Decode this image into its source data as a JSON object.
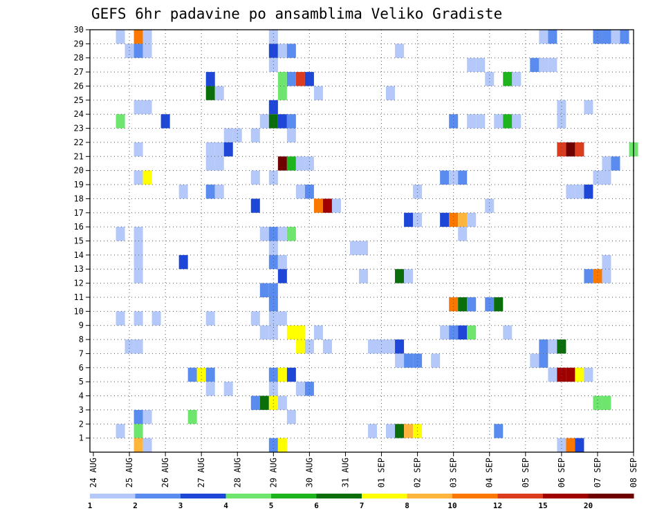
{
  "chart_data": {
    "type": "heatmap",
    "title": "GEFS 6hr padavine po ansamblima Veliko Gradiste",
    "xlabel": "",
    "ylabel": "",
    "x_ticks": [
      "24 AUG",
      "25 AUG",
      "26 AUG",
      "27 AUG",
      "28 AUG",
      "29 AUG",
      "30 AUG",
      "31 AUG",
      "01 SEP",
      "02 SEP",
      "03 SEP",
      "04 SEP",
      "05 SEP",
      "06 SEP",
      "07 SEP",
      "08 SEP"
    ],
    "x_range_steps": [
      0,
      60
    ],
    "y_ticks": [
      1,
      2,
      3,
      4,
      5,
      6,
      7,
      8,
      9,
      10,
      11,
      12,
      13,
      14,
      15,
      16,
      17,
      18,
      19,
      20,
      21,
      22,
      23,
      24,
      25,
      26,
      27,
      28,
      29,
      30
    ],
    "y_range": [
      0,
      30
    ],
    "grid": true,
    "colorbar": {
      "labels": [
        "1",
        "2",
        "3",
        "4",
        "5",
        "6",
        "7",
        "8",
        "10",
        "12",
        "15",
        "20"
      ],
      "colors": [
        "#b4c8fa",
        "#5a8cf0",
        "#1e46d7",
        "#6ee66e",
        "#1eb41e",
        "#0a6e0a",
        "#ffff00",
        "#ffb43c",
        "#fa7800",
        "#dc3c1e",
        "#a00000",
        "#6e0000"
      ]
    },
    "cells_note": "Each cell: [member(1-30), 6h step index from 24 AUG 00Z, colour class 0-11 (0 = 1-2 mm ... 11 = >20 mm)]",
    "cells": [
      [
        30,
        3,
        0
      ],
      [
        30,
        5,
        8
      ],
      [
        30,
        6,
        0
      ],
      [
        30,
        20,
        0
      ],
      [
        30,
        50,
        0
      ],
      [
        30,
        51,
        1
      ],
      [
        30,
        56,
        1
      ],
      [
        30,
        57,
        1
      ],
      [
        30,
        58,
        0
      ],
      [
        30,
        59,
        1
      ],
      [
        29,
        4,
        0
      ],
      [
        29,
        5,
        1
      ],
      [
        29,
        6,
        0
      ],
      [
        29,
        20,
        2
      ],
      [
        29,
        21,
        0
      ],
      [
        29,
        22,
        1
      ],
      [
        29,
        34,
        0
      ],
      [
        28,
        20,
        0
      ],
      [
        28,
        42,
        0
      ],
      [
        28,
        43,
        0
      ],
      [
        28,
        49,
        1
      ],
      [
        28,
        50,
        0
      ],
      [
        28,
        51,
        0
      ],
      [
        27,
        13,
        2
      ],
      [
        27,
        21,
        3
      ],
      [
        27,
        22,
        1
      ],
      [
        27,
        23,
        9
      ],
      [
        27,
        24,
        2
      ],
      [
        27,
        44,
        0
      ],
      [
        27,
        46,
        4
      ],
      [
        27,
        47,
        0
      ],
      [
        26,
        13,
        5
      ],
      [
        26,
        14,
        0
      ],
      [
        26,
        21,
        3
      ],
      [
        26,
        25,
        0
      ],
      [
        26,
        33,
        0
      ],
      [
        25,
        5,
        0
      ],
      [
        25,
        6,
        0
      ],
      [
        25,
        20,
        2
      ],
      [
        25,
        52,
        0
      ],
      [
        25,
        55,
        0
      ],
      [
        24,
        3,
        3
      ],
      [
        24,
        8,
        2
      ],
      [
        24,
        19,
        0
      ],
      [
        24,
        20,
        5
      ],
      [
        24,
        21,
        2
      ],
      [
        24,
        22,
        1
      ],
      [
        24,
        40,
        1
      ],
      [
        24,
        42,
        0
      ],
      [
        24,
        43,
        0
      ],
      [
        24,
        45,
        0
      ],
      [
        24,
        46,
        4
      ],
      [
        24,
        47,
        0
      ],
      [
        24,
        52,
        0
      ],
      [
        23,
        15,
        0
      ],
      [
        23,
        16,
        0
      ],
      [
        23,
        18,
        0
      ],
      [
        23,
        22,
        0
      ],
      [
        22,
        5,
        0
      ],
      [
        22,
        13,
        0
      ],
      [
        22,
        14,
        0
      ],
      [
        22,
        15,
        2
      ],
      [
        22,
        52,
        9
      ],
      [
        22,
        53,
        11
      ],
      [
        22,
        54,
        9
      ],
      [
        22,
        60,
        3
      ],
      [
        21,
        13,
        0
      ],
      [
        21,
        14,
        0
      ],
      [
        21,
        21,
        11
      ],
      [
        21,
        22,
        4
      ],
      [
        21,
        23,
        0
      ],
      [
        21,
        24,
        0
      ],
      [
        21,
        57,
        0
      ],
      [
        21,
        58,
        1
      ],
      [
        20,
        5,
        0
      ],
      [
        20,
        6,
        6
      ],
      [
        20,
        18,
        0
      ],
      [
        20,
        20,
        0
      ],
      [
        20,
        39,
        1
      ],
      [
        20,
        40,
        0
      ],
      [
        20,
        41,
        1
      ],
      [
        20,
        56,
        0
      ],
      [
        20,
        57,
        0
      ],
      [
        19,
        10,
        0
      ],
      [
        19,
        13,
        1
      ],
      [
        19,
        14,
        0
      ],
      [
        19,
        23,
        0
      ],
      [
        19,
        24,
        1
      ],
      [
        19,
        36,
        0
      ],
      [
        19,
        53,
        0
      ],
      [
        19,
        54,
        0
      ],
      [
        19,
        55,
        2
      ],
      [
        18,
        18,
        2
      ],
      [
        18,
        25,
        8
      ],
      [
        18,
        26,
        10
      ],
      [
        18,
        27,
        0
      ],
      [
        18,
        44,
        0
      ],
      [
        17,
        35,
        2
      ],
      [
        17,
        36,
        0
      ],
      [
        17,
        39,
        2
      ],
      [
        17,
        40,
        8
      ],
      [
        17,
        41,
        7
      ],
      [
        17,
        42,
        0
      ],
      [
        16,
        3,
        0
      ],
      [
        16,
        5,
        0
      ],
      [
        16,
        19,
        0
      ],
      [
        16,
        20,
        1
      ],
      [
        16,
        21,
        0
      ],
      [
        16,
        22,
        3
      ],
      [
        16,
        41,
        0
      ],
      [
        15,
        5,
        0
      ],
      [
        15,
        20,
        0
      ],
      [
        15,
        29,
        0
      ],
      [
        15,
        30,
        0
      ],
      [
        14,
        5,
        0
      ],
      [
        14,
        10,
        2
      ],
      [
        14,
        20,
        1
      ],
      [
        14,
        21,
        0
      ],
      [
        14,
        57,
        0
      ],
      [
        13,
        5,
        0
      ],
      [
        13,
        21,
        2
      ],
      [
        13,
        30,
        0
      ],
      [
        13,
        34,
        5
      ],
      [
        13,
        35,
        0
      ],
      [
        13,
        55,
        1
      ],
      [
        13,
        56,
        8
      ],
      [
        13,
        57,
        0
      ],
      [
        12,
        19,
        1
      ],
      [
        12,
        20,
        1
      ],
      [
        11,
        20,
        1
      ],
      [
        11,
        40,
        8
      ],
      [
        11,
        41,
        5
      ],
      [
        11,
        42,
        1
      ],
      [
        11,
        44,
        1
      ],
      [
        11,
        45,
        5
      ],
      [
        10,
        3,
        0
      ],
      [
        10,
        5,
        0
      ],
      [
        10,
        7,
        0
      ],
      [
        10,
        13,
        0
      ],
      [
        10,
        18,
        0
      ],
      [
        10,
        20,
        0
      ],
      [
        10,
        21,
        0
      ],
      [
        9,
        19,
        0
      ],
      [
        9,
        20,
        0
      ],
      [
        9,
        22,
        6
      ],
      [
        9,
        23,
        6
      ],
      [
        9,
        25,
        0
      ],
      [
        9,
        39,
        0
      ],
      [
        9,
        40,
        1
      ],
      [
        9,
        41,
        2
      ],
      [
        9,
        42,
        3
      ],
      [
        9,
        46,
        0
      ],
      [
        8,
        4,
        0
      ],
      [
        8,
        5,
        0
      ],
      [
        8,
        23,
        6
      ],
      [
        8,
        24,
        0
      ],
      [
        8,
        26,
        0
      ],
      [
        8,
        31,
        0
      ],
      [
        8,
        32,
        0
      ],
      [
        8,
        33,
        0
      ],
      [
        8,
        34,
        2
      ],
      [
        8,
        50,
        1
      ],
      [
        8,
        51,
        0
      ],
      [
        8,
        52,
        5
      ],
      [
        7,
        34,
        0
      ],
      [
        7,
        35,
        1
      ],
      [
        7,
        36,
        1
      ],
      [
        7,
        38,
        0
      ],
      [
        7,
        49,
        0
      ],
      [
        7,
        50,
        1
      ],
      [
        6,
        11,
        1
      ],
      [
        6,
        12,
        6
      ],
      [
        6,
        13,
        1
      ],
      [
        6,
        20,
        1
      ],
      [
        6,
        21,
        6
      ],
      [
        6,
        22,
        2
      ],
      [
        6,
        51,
        0
      ],
      [
        6,
        52,
        10
      ],
      [
        6,
        53,
        10
      ],
      [
        6,
        54,
        6
      ],
      [
        6,
        55,
        0
      ],
      [
        5,
        13,
        0
      ],
      [
        5,
        15,
        0
      ],
      [
        5,
        20,
        0
      ],
      [
        5,
        23,
        0
      ],
      [
        5,
        24,
        1
      ],
      [
        4,
        18,
        1
      ],
      [
        4,
        19,
        5
      ],
      [
        4,
        20,
        6
      ],
      [
        4,
        21,
        0
      ],
      [
        4,
        56,
        3
      ],
      [
        4,
        57,
        3
      ],
      [
        3,
        5,
        1
      ],
      [
        3,
        6,
        0
      ],
      [
        3,
        11,
        3
      ],
      [
        3,
        22,
        0
      ],
      [
        2,
        3,
        0
      ],
      [
        2,
        5,
        3
      ],
      [
        2,
        31,
        0
      ],
      [
        2,
        33,
        0
      ],
      [
        2,
        34,
        5
      ],
      [
        2,
        35,
        7
      ],
      [
        2,
        36,
        6
      ],
      [
        2,
        45,
        1
      ],
      [
        1,
        5,
        7
      ],
      [
        1,
        6,
        0
      ],
      [
        1,
        20,
        1
      ],
      [
        1,
        21,
        6
      ],
      [
        1,
        52,
        0
      ],
      [
        1,
        53,
        8
      ],
      [
        1,
        54,
        2
      ]
    ]
  }
}
